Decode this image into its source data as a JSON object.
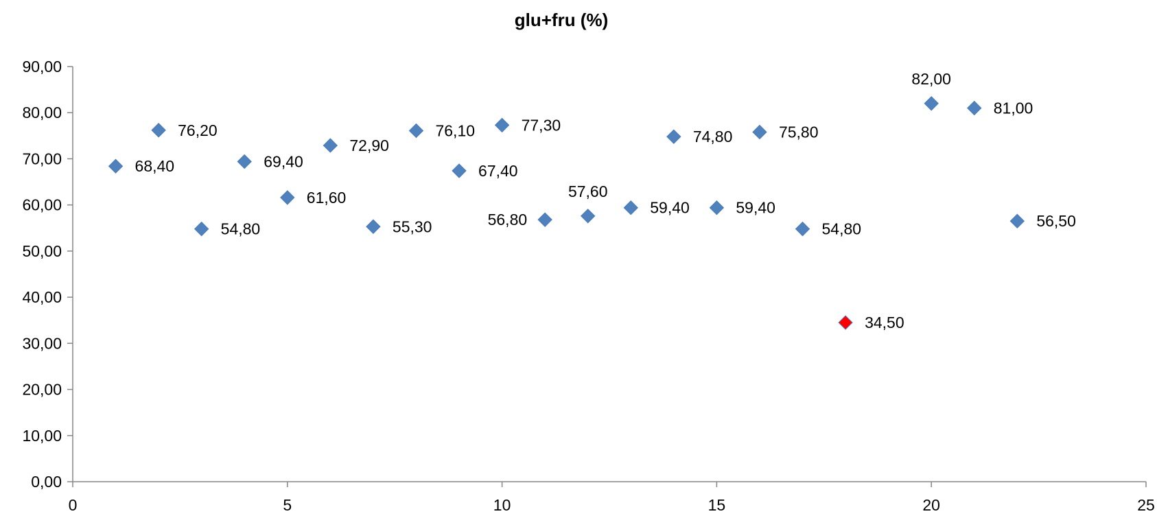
{
  "chart_data": {
    "type": "scatter",
    "title": "glu+fru (%)",
    "xlabel": "",
    "ylabel": "",
    "xlim": [
      0,
      25
    ],
    "ylim": [
      0,
      90
    ],
    "x_ticks": [
      0,
      5,
      10,
      15,
      20,
      25
    ],
    "y_ticks": [
      0,
      10,
      20,
      30,
      40,
      50,
      60,
      70,
      80,
      90
    ],
    "y_tick_labels": [
      "0,00",
      "10,00",
      "20,00",
      "30,00",
      "40,00",
      "50,00",
      "60,00",
      "70,00",
      "80,00",
      "90,00"
    ],
    "grid": false,
    "legend": false,
    "marker": "diamond",
    "colors": {
      "default": "#4F81BD",
      "highlight": "#FF0000"
    },
    "points": [
      {
        "x": 1,
        "y": 68.4,
        "label": "68,40",
        "pos": "right"
      },
      {
        "x": 2,
        "y": 76.2,
        "label": "76,20",
        "pos": "right"
      },
      {
        "x": 3,
        "y": 54.8,
        "label": "54,80",
        "pos": "right"
      },
      {
        "x": 4,
        "y": 69.4,
        "label": "69,40",
        "pos": "right"
      },
      {
        "x": 5,
        "y": 61.6,
        "label": "61,60",
        "pos": "right"
      },
      {
        "x": 6,
        "y": 72.9,
        "label": "72,90",
        "pos": "right"
      },
      {
        "x": 7,
        "y": 55.3,
        "label": "55,30",
        "pos": "right"
      },
      {
        "x": 8,
        "y": 76.1,
        "label": "76,10",
        "pos": "right"
      },
      {
        "x": 9,
        "y": 67.4,
        "label": "67,40",
        "pos": "right"
      },
      {
        "x": 10,
        "y": 77.3,
        "label": "77,30",
        "pos": "right"
      },
      {
        "x": 11,
        "y": 56.8,
        "label": "56,80",
        "pos": "left"
      },
      {
        "x": 12,
        "y": 57.6,
        "label": "57,60",
        "pos": "above"
      },
      {
        "x": 13,
        "y": 59.4,
        "label": "59,40",
        "pos": "right"
      },
      {
        "x": 14,
        "y": 74.8,
        "label": "74,80",
        "pos": "right"
      },
      {
        "x": 15,
        "y": 59.4,
        "label": "59,40",
        "pos": "right"
      },
      {
        "x": 16,
        "y": 75.8,
        "label": "75,80",
        "pos": "right"
      },
      {
        "x": 17,
        "y": 54.8,
        "label": "54,80",
        "pos": "right"
      },
      {
        "x": 18,
        "y": 34.5,
        "label": "34,50",
        "pos": "right",
        "highlight": true
      },
      {
        "x": 20,
        "y": 82.0,
        "label": "82,00",
        "pos": "above"
      },
      {
        "x": 21,
        "y": 81.0,
        "label": "81,00",
        "pos": "right"
      },
      {
        "x": 22,
        "y": 56.5,
        "label": "56,50",
        "pos": "right"
      }
    ]
  }
}
